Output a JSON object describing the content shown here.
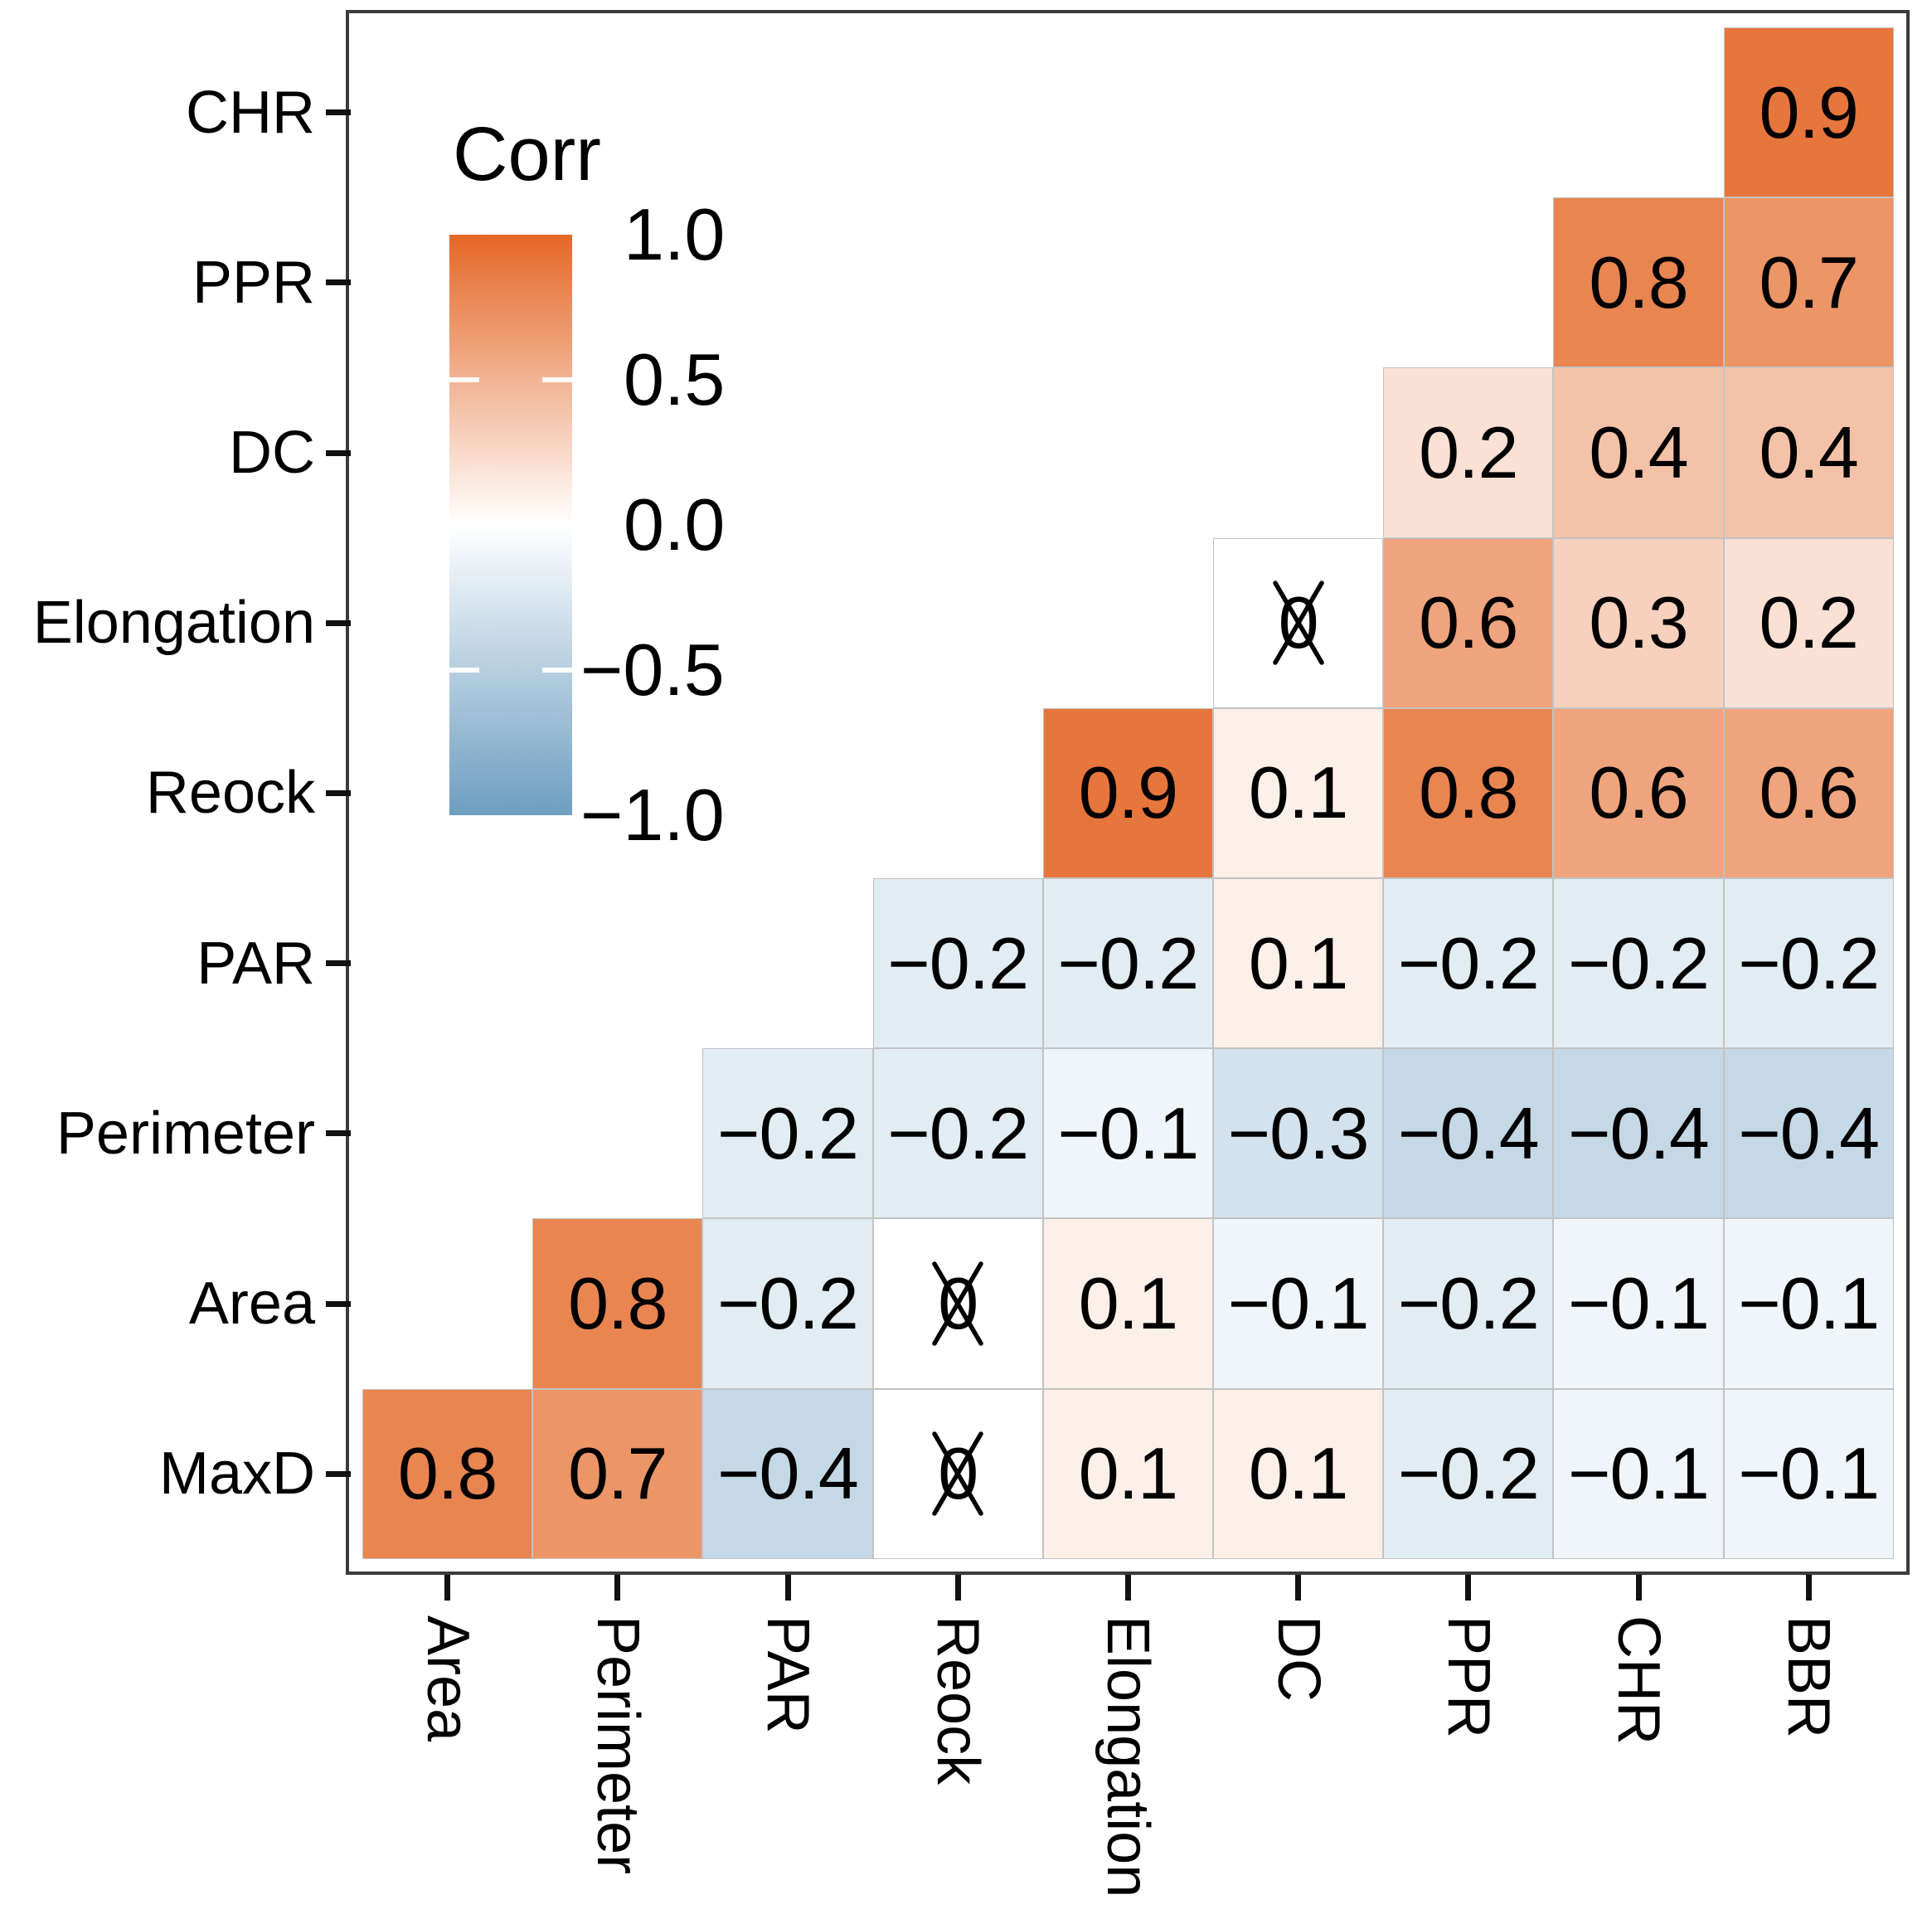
{
  "figure": {
    "background": "#FFFFFF"
  },
  "legend": {
    "title": "Corr",
    "ticks": [
      "1.0",
      "0.5",
      "0.0",
      "−0.5",
      "−1.0"
    ],
    "gradient_high": "#E46726",
    "gradient_mid": "#FFFFFF",
    "gradient_low": "#6D9EC1"
  },
  "chart_data": {
    "type": "heatmap",
    "subtype": "correlation-matrix-upper-triangle",
    "title": "",
    "legend_title": "Corr",
    "legend_position": "inside-top-left",
    "legend_tick_values": [
      1.0,
      0.5,
      0.0,
      -0.5,
      -1.0
    ],
    "colorscale": {
      "low": "#6D9EC1",
      "mid": "#FFFFFF",
      "high": "#E46726",
      "domain": [
        -1,
        1
      ]
    },
    "panel_border_color": "#3B3B3B",
    "tile_border_color": "#C2C2C2",
    "tick_color": "#111111",
    "text_color": "#000000",
    "x_axis_label_rotation_deg": 90,
    "x_categories": [
      "Area",
      "Perimeter",
      "PAR",
      "Reock",
      "Elongation",
      "DC",
      "PPR",
      "CHR",
      "BBR"
    ],
    "y_categories": [
      "CHR",
      "PPR",
      "DC",
      "Elongation",
      "Reock",
      "PAR",
      "Perimeter",
      "Area",
      "MaxD"
    ],
    "crossed_meaning": "correlation shown as 0 with X overstrike (not significant)",
    "rows": [
      {
        "y": "CHR",
        "cells": [
          {
            "x": "BBR",
            "v": 0.9,
            "label": "0.9",
            "crossed": false
          }
        ]
      },
      {
        "y": "PPR",
        "cells": [
          {
            "x": "CHR",
            "v": 0.8,
            "label": "0.8",
            "crossed": false
          },
          {
            "x": "BBR",
            "v": 0.7,
            "label": "0.7",
            "crossed": false
          }
        ]
      },
      {
        "y": "DC",
        "cells": [
          {
            "x": "PPR",
            "v": 0.2,
            "label": "0.2",
            "crossed": false
          },
          {
            "x": "CHR",
            "v": 0.4,
            "label": "0.4",
            "crossed": false
          },
          {
            "x": "BBR",
            "v": 0.4,
            "label": "0.4",
            "crossed": false
          }
        ]
      },
      {
        "y": "Elongation",
        "cells": [
          {
            "x": "DC",
            "v": 0,
            "label": "0",
            "crossed": true
          },
          {
            "x": "PPR",
            "v": 0.6,
            "label": "0.6",
            "crossed": false
          },
          {
            "x": "CHR",
            "v": 0.3,
            "label": "0.3",
            "crossed": false
          },
          {
            "x": "BBR",
            "v": 0.2,
            "label": "0.2",
            "crossed": false
          }
        ]
      },
      {
        "y": "Reock",
        "cells": [
          {
            "x": "Elongation",
            "v": 0.9,
            "label": "0.9",
            "crossed": false
          },
          {
            "x": "DC",
            "v": 0.1,
            "label": "0.1",
            "crossed": false
          },
          {
            "x": "PPR",
            "v": 0.8,
            "label": "0.8",
            "crossed": false
          },
          {
            "x": "CHR",
            "v": 0.6,
            "label": "0.6",
            "crossed": false
          },
          {
            "x": "BBR",
            "v": 0.6,
            "label": "0.6",
            "crossed": false
          }
        ]
      },
      {
        "y": "PAR",
        "cells": [
          {
            "x": "Reock",
            "v": -0.2,
            "label": "−0.2",
            "crossed": false
          },
          {
            "x": "Elongation",
            "v": -0.2,
            "label": "−0.2",
            "crossed": false
          },
          {
            "x": "DC",
            "v": 0.1,
            "label": "0.1",
            "crossed": false
          },
          {
            "x": "PPR",
            "v": -0.2,
            "label": "−0.2",
            "crossed": false
          },
          {
            "x": "CHR",
            "v": -0.2,
            "label": "−0.2",
            "crossed": false
          },
          {
            "x": "BBR",
            "v": -0.2,
            "label": "−0.2",
            "crossed": false
          }
        ]
      },
      {
        "y": "Perimeter",
        "cells": [
          {
            "x": "PAR",
            "v": -0.2,
            "label": "−0.2",
            "crossed": false
          },
          {
            "x": "Reock",
            "v": -0.2,
            "label": "−0.2",
            "crossed": false
          },
          {
            "x": "Elongation",
            "v": -0.1,
            "label": "−0.1",
            "crossed": false
          },
          {
            "x": "DC",
            "v": -0.3,
            "label": "−0.3",
            "crossed": false
          },
          {
            "x": "PPR",
            "v": -0.4,
            "label": "−0.4",
            "crossed": false
          },
          {
            "x": "CHR",
            "v": -0.4,
            "label": "−0.4",
            "crossed": false
          },
          {
            "x": "BBR",
            "v": -0.4,
            "label": "−0.4",
            "crossed": false
          }
        ]
      },
      {
        "y": "Area",
        "cells": [
          {
            "x": "Perimeter",
            "v": 0.8,
            "label": "0.8",
            "crossed": false
          },
          {
            "x": "PAR",
            "v": -0.2,
            "label": "−0.2",
            "crossed": false
          },
          {
            "x": "Reock",
            "v": 0,
            "label": "0",
            "crossed": true
          },
          {
            "x": "Elongation",
            "v": 0.1,
            "label": "0.1",
            "crossed": false
          },
          {
            "x": "DC",
            "v": -0.1,
            "label": "−0.1",
            "crossed": false
          },
          {
            "x": "PPR",
            "v": -0.2,
            "label": "−0.2",
            "crossed": false
          },
          {
            "x": "CHR",
            "v": -0.1,
            "label": "−0.1",
            "crossed": false
          },
          {
            "x": "BBR",
            "v": -0.1,
            "label": "−0.1",
            "crossed": false
          }
        ]
      },
      {
        "y": "MaxD",
        "cells": [
          {
            "x": "Area",
            "v": 0.8,
            "label": "0.8",
            "crossed": false
          },
          {
            "x": "Perimeter",
            "v": 0.7,
            "label": "0.7",
            "crossed": false
          },
          {
            "x": "PAR",
            "v": -0.4,
            "label": "−0.4",
            "crossed": false
          },
          {
            "x": "Reock",
            "v": 0,
            "label": "0",
            "crossed": true
          },
          {
            "x": "Elongation",
            "v": 0.1,
            "label": "0.1",
            "crossed": false
          },
          {
            "x": "DC",
            "v": 0.1,
            "label": "0.1",
            "crossed": false
          },
          {
            "x": "PPR",
            "v": -0.2,
            "label": "−0.2",
            "crossed": false
          },
          {
            "x": "CHR",
            "v": -0.1,
            "label": "−0.1",
            "crossed": false
          },
          {
            "x": "BBR",
            "v": -0.1,
            "label": "−0.1",
            "crossed": false
          }
        ]
      }
    ]
  }
}
